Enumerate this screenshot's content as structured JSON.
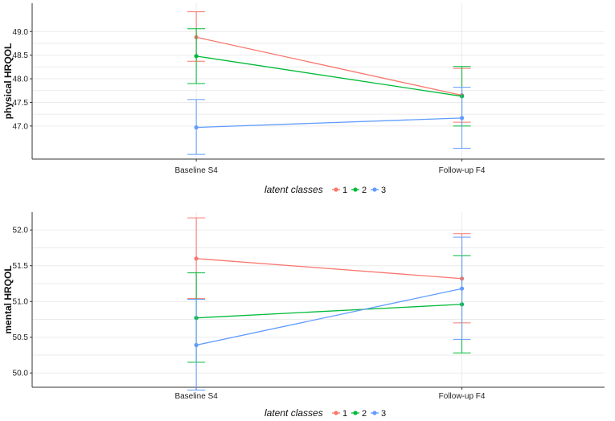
{
  "chart_data": [
    {
      "type": "line",
      "ylabel": "physical HRQOL",
      "xlabel": "",
      "categories": [
        "Baseline S4",
        "Follow-up F4"
      ],
      "ylim": [
        46.3,
        49.6
      ],
      "yticks": [
        "47.0",
        "47.5",
        "48.0",
        "48.5",
        "49.0"
      ],
      "legend": {
        "title": "latent classes",
        "position": "bottom"
      },
      "series": [
        {
          "name": "1",
          "color": "#F8766D",
          "values": [
            48.88,
            47.65
          ],
          "lower": [
            48.37,
            47.08
          ],
          "upper": [
            49.42,
            48.22
          ]
        },
        {
          "name": "2",
          "color": "#00BA38",
          "values": [
            48.48,
            47.63
          ],
          "lower": [
            47.9,
            47.0
          ],
          "upper": [
            49.06,
            48.26
          ]
        },
        {
          "name": "3",
          "color": "#619CFF",
          "values": [
            46.97,
            47.17
          ],
          "lower": [
            46.4,
            46.53
          ],
          "upper": [
            47.56,
            47.82
          ]
        }
      ]
    },
    {
      "type": "line",
      "ylabel": "mental HRQOL",
      "xlabel": "",
      "categories": [
        "Baseline S4",
        "Follow-up F4"
      ],
      "ylim": [
        49.8,
        52.25
      ],
      "yticks": [
        "50.0",
        "50.5",
        "51.0",
        "51.5",
        "52.0"
      ],
      "legend": {
        "title": "latent classes",
        "position": "bottom"
      },
      "series": [
        {
          "name": "1",
          "color": "#F8766D",
          "values": [
            51.6,
            51.32
          ],
          "lower": [
            51.04,
            50.7
          ],
          "upper": [
            52.17,
            51.95
          ]
        },
        {
          "name": "2",
          "color": "#00BA38",
          "values": [
            50.77,
            50.96
          ],
          "lower": [
            50.15,
            50.28
          ],
          "upper": [
            51.4,
            51.64
          ]
        },
        {
          "name": "3",
          "color": "#619CFF",
          "values": [
            50.39,
            51.18
          ],
          "lower": [
            49.76,
            50.47
          ],
          "upper": [
            51.03,
            51.9
          ]
        }
      ]
    }
  ]
}
